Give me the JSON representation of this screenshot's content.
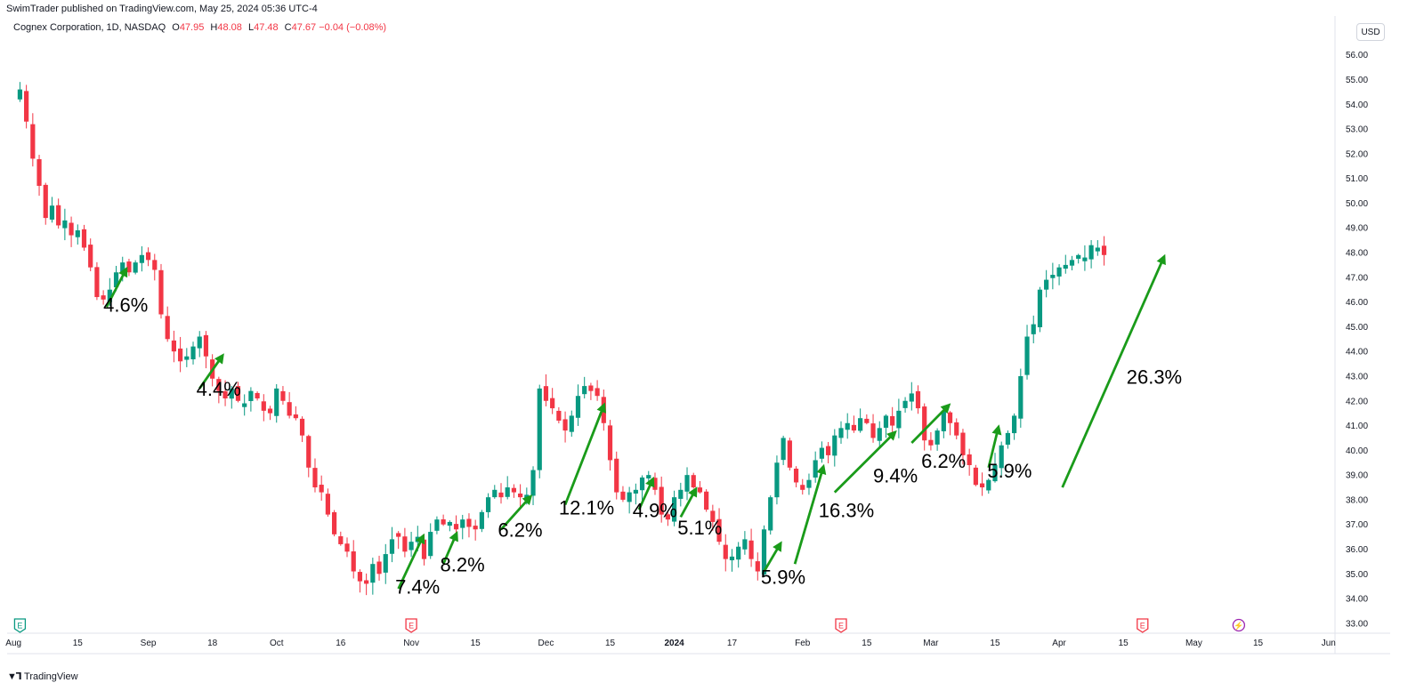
{
  "header": {
    "published": "SwimTrader published on TradingView.com, May 25, 2024 05:36 UTC-4",
    "symbol": "Cognex Corporation, 1D, NASDAQ",
    "ohlc": {
      "o_label": "O",
      "o": "47.95",
      "h_label": "H",
      "h": "48.08",
      "l_label": "L",
      "l": "47.48",
      "c_label": "C",
      "c": "47.67",
      "change": "−0.04 (−0.08%)"
    },
    "currency": "USD"
  },
  "footer": {
    "brand": "TradingView",
    "logo": "tradingview-logo-icon"
  },
  "colors": {
    "up": "#089981",
    "down": "#f23645",
    "arrow": "#1a9b1a",
    "earnings": "#f23645",
    "dividend": "#089981",
    "bolt": "#9c27b0"
  },
  "chart_data": {
    "type": "candlestick",
    "y_ticks": [
      "56.00",
      "55.00",
      "54.00",
      "53.00",
      "52.00",
      "51.00",
      "50.00",
      "49.00",
      "48.00",
      "47.00",
      "46.00",
      "45.00",
      "44.00",
      "43.00",
      "42.00",
      "41.00",
      "40.00",
      "39.00",
      "38.00",
      "37.00",
      "36.00",
      "35.00",
      "34.00",
      "33.00"
    ],
    "ylim": [
      32.6,
      56.6
    ],
    "x_ticks": [
      {
        "label": "Aug",
        "t": 0
      },
      {
        "label": "15",
        "t": 10
      },
      {
        "label": "Sep",
        "t": 21
      },
      {
        "label": "18",
        "t": 31
      },
      {
        "label": "Oct",
        "t": 41
      },
      {
        "label": "16",
        "t": 51
      },
      {
        "label": "Nov",
        "t": 62
      },
      {
        "label": "15",
        "t": 72
      },
      {
        "label": "Dec",
        "t": 83
      },
      {
        "label": "15",
        "t": 93
      },
      {
        "label": "2024",
        "t": 103
      },
      {
        "label": "17",
        "t": 112
      },
      {
        "label": "Feb",
        "t": 123
      },
      {
        "label": "15",
        "t": 133
      },
      {
        "label": "Mar",
        "t": 143
      },
      {
        "label": "15",
        "t": 153
      },
      {
        "label": "Apr",
        "t": 163
      },
      {
        "label": "15",
        "t": 173
      },
      {
        "label": "May",
        "t": 184
      },
      {
        "label": "15",
        "t": 194
      },
      {
        "label": "Jun",
        "t": 205
      }
    ],
    "t_range": [
      -1,
      206
    ],
    "anchors": [
      [
        0,
        54.2
      ],
      [
        1,
        54.6
      ],
      [
        2,
        53.3
      ],
      [
        3,
        51.8
      ],
      [
        4,
        50.7
      ],
      [
        5,
        49.4
      ],
      [
        6,
        49.9
      ],
      [
        7,
        49.1
      ],
      [
        8,
        49.3
      ],
      [
        9,
        48.7
      ],
      [
        10,
        48.9
      ],
      [
        11,
        48.2
      ],
      [
        12,
        47.4
      ],
      [
        13,
        46.2
      ],
      [
        14,
        46.1
      ],
      [
        15,
        46.5
      ],
      [
        16,
        47.2
      ],
      [
        17,
        47.6
      ],
      [
        18,
        47.2
      ],
      [
        19,
        47.6
      ],
      [
        20,
        47.9
      ],
      [
        21,
        47.7
      ],
      [
        22,
        47.3
      ],
      [
        23,
        45.5
      ],
      [
        24,
        44.5
      ],
      [
        25,
        44.0
      ],
      [
        26,
        43.6
      ],
      [
        27,
        43.8
      ],
      [
        28,
        44.2
      ],
      [
        29,
        44.6
      ],
      [
        30,
        43.8
      ],
      [
        31,
        42.9
      ],
      [
        32,
        42.4
      ],
      [
        33,
        42.1
      ],
      [
        34,
        42.5
      ],
      [
        35,
        42.0
      ],
      [
        36,
        41.9
      ],
      [
        37,
        42.4
      ],
      [
        38,
        42.1
      ],
      [
        39,
        41.6
      ],
      [
        40,
        41.5
      ],
      [
        41,
        42.5
      ],
      [
        42,
        42.0
      ],
      [
        43,
        41.4
      ],
      [
        44,
        41.3
      ],
      [
        45,
        40.6
      ],
      [
        46,
        39.3
      ],
      [
        47,
        38.5
      ],
      [
        48,
        38.3
      ],
      [
        49,
        37.4
      ],
      [
        50,
        36.6
      ],
      [
        51,
        36.2
      ],
      [
        52,
        35.9
      ],
      [
        53,
        35.1
      ],
      [
        54,
        34.7
      ],
      [
        55,
        34.6
      ],
      [
        56,
        35.4
      ],
      [
        57,
        35.0
      ],
      [
        58,
        35.8
      ],
      [
        59,
        36.4
      ],
      [
        60,
        36.5
      ],
      [
        61,
        35.9
      ],
      [
        62,
        36.3
      ],
      [
        63,
        36.5
      ],
      [
        64,
        35.6
      ],
      [
        65,
        36.7
      ],
      [
        66,
        37.2
      ],
      [
        67,
        37.0
      ],
      [
        68,
        37.1
      ],
      [
        69,
        36.8
      ],
      [
        70,
        37.2
      ],
      [
        71,
        36.9
      ],
      [
        72,
        36.8
      ],
      [
        73,
        37.5
      ],
      [
        74,
        38.1
      ],
      [
        75,
        38.4
      ],
      [
        76,
        38.1
      ],
      [
        77,
        38.5
      ],
      [
        78,
        38.3
      ],
      [
        79,
        38.1
      ],
      [
        80,
        38.2
      ],
      [
        81,
        39.2
      ],
      [
        82,
        42.5
      ],
      [
        83,
        42.0
      ],
      [
        84,
        41.7
      ],
      [
        85,
        41.2
      ],
      [
        86,
        40.8
      ],
      [
        87,
        41.4
      ],
      [
        88,
        42.2
      ],
      [
        89,
        42.6
      ],
      [
        90,
        42.4
      ],
      [
        91,
        42.2
      ],
      [
        92,
        41.1
      ],
      [
        93,
        39.6
      ],
      [
        94,
        38.3
      ],
      [
        95,
        38.0
      ],
      [
        96,
        38.3
      ],
      [
        97,
        38.4
      ],
      [
        98,
        38.9
      ],
      [
        99,
        39.0
      ],
      [
        100,
        38.4
      ],
      [
        101,
        37.4
      ],
      [
        102,
        37.2
      ],
      [
        103,
        38.1
      ],
      [
        104,
        38.4
      ],
      [
        105,
        39.0
      ],
      [
        106,
        38.5
      ],
      [
        107,
        38.3
      ],
      [
        108,
        37.6
      ],
      [
        109,
        37.1
      ],
      [
        110,
        36.3
      ],
      [
        111,
        35.6
      ],
      [
        112,
        35.7
      ],
      [
        113,
        36.1
      ],
      [
        114,
        36.4
      ],
      [
        115,
        35.6
      ],
      [
        116,
        35.1
      ],
      [
        117,
        36.8
      ],
      [
        118,
        38.1
      ],
      [
        119,
        39.5
      ],
      [
        120,
        40.5
      ],
      [
        121,
        39.3
      ],
      [
        122,
        38.7
      ],
      [
        123,
        38.4
      ],
      [
        124,
        38.8
      ],
      [
        125,
        39.6
      ],
      [
        126,
        40.1
      ],
      [
        127,
        39.8
      ],
      [
        128,
        40.6
      ],
      [
        129,
        40.9
      ],
      [
        130,
        41.1
      ],
      [
        131,
        40.8
      ],
      [
        132,
        41.3
      ],
      [
        133,
        41.1
      ],
      [
        134,
        40.5
      ],
      [
        135,
        40.9
      ],
      [
        136,
        41.4
      ],
      [
        137,
        41.0
      ],
      [
        138,
        41.6
      ],
      [
        139,
        42.0
      ],
      [
        140,
        42.3
      ],
      [
        141,
        41.7
      ],
      [
        142,
        40.4
      ],
      [
        143,
        40.2
      ],
      [
        144,
        40.8
      ],
      [
        145,
        41.6
      ],
      [
        146,
        41.1
      ],
      [
        147,
        40.6
      ],
      [
        148,
        39.8
      ],
      [
        149,
        39.4
      ],
      [
        150,
        38.6
      ],
      [
        151,
        38.5
      ],
      [
        152,
        38.8
      ],
      [
        153,
        39.4
      ],
      [
        154,
        40.2
      ],
      [
        155,
        40.7
      ],
      [
        156,
        41.4
      ],
      [
        157,
        43.0
      ],
      [
        158,
        44.6
      ],
      [
        159,
        45.1
      ],
      [
        160,
        46.5
      ],
      [
        161,
        46.9
      ],
      [
        162,
        47.1
      ],
      [
        163,
        47.4
      ],
      [
        164,
        47.5
      ],
      [
        165,
        47.7
      ],
      [
        166,
        47.9
      ],
      [
        167,
        47.8
      ],
      [
        168,
        48.3
      ],
      [
        169,
        48.2
      ],
      [
        170,
        47.9
      ]
    ],
    "markers": [
      {
        "type": "dividend",
        "label": "E",
        "t": 1
      },
      {
        "type": "earnings",
        "label": "E",
        "t": 62
      },
      {
        "type": "earnings",
        "label": "E",
        "t": 129
      },
      {
        "type": "earnings",
        "label": "E",
        "t": 176
      },
      {
        "type": "bolt",
        "label": "⚡",
        "t": 191
      }
    ],
    "annotations": [
      {
        "text": "4.6%",
        "from": [
          14.5,
          45.8
        ],
        "to": [
          17.5,
          47.3
        ],
        "lx": 14,
        "ly": 45.6
      },
      {
        "text": "4.4%",
        "from": [
          29,
          42.5
        ],
        "to": [
          32.5,
          43.8
        ],
        "lx": 28.5,
        "ly": 42.2
      },
      {
        "text": "7.4%",
        "from": [
          60,
          34.4
        ],
        "to": [
          63.8,
          36.5
        ],
        "lx": 59.5,
        "ly": 34.2
      },
      {
        "text": "8.2%",
        "from": [
          67,
          35.4
        ],
        "to": [
          69,
          36.6
        ],
        "lx": 66.5,
        "ly": 35.1
      },
      {
        "text": "6.2%",
        "from": [
          76,
          36.8
        ],
        "to": [
          80.5,
          38.1
        ],
        "lx": 75.5,
        "ly": 36.5
      },
      {
        "text": "12.1%",
        "from": [
          86,
          37.8
        ],
        "to": [
          92,
          41.8
        ],
        "lx": 85,
        "ly": 37.4
      },
      {
        "text": "4.9%",
        "from": [
          97.5,
          37.6
        ],
        "to": [
          99.6,
          38.8
        ],
        "lx": 96.5,
        "ly": 37.3
      },
      {
        "text": "5.1%",
        "from": [
          104,
          37.3
        ],
        "to": [
          106.3,
          38.4
        ],
        "lx": 103.5,
        "ly": 36.6
      },
      {
        "text": "5.9%",
        "from": [
          117,
          35.1
        ],
        "to": [
          119.5,
          36.2
        ],
        "lx": 116.5,
        "ly": 34.6
      },
      {
        "text": "16.3%",
        "from": [
          121.8,
          35.4
        ],
        "to": [
          126.2,
          39.3
        ],
        "lx": 125.5,
        "ly": 37.3
      },
      {
        "text": "9.4%",
        "from": [
          128,
          38.3
        ],
        "to": [
          137.3,
          40.7
        ],
        "lx": 134,
        "ly": 38.7
      },
      {
        "text": "6.2%",
        "from": [
          140,
          40.3
        ],
        "to": [
          145.7,
          41.8
        ],
        "lx": 141.5,
        "ly": 39.3
      },
      {
        "text": "5.9%",
        "from": [
          152,
          39.3
        ],
        "to": [
          153.5,
          40.9
        ],
        "lx": 151.8,
        "ly": 38.9
      },
      {
        "text": "26.3%",
        "from": [
          163.5,
          38.5
        ],
        "to": [
          179.3,
          47.8
        ],
        "lx": 173.5,
        "ly": 42.7
      }
    ]
  }
}
